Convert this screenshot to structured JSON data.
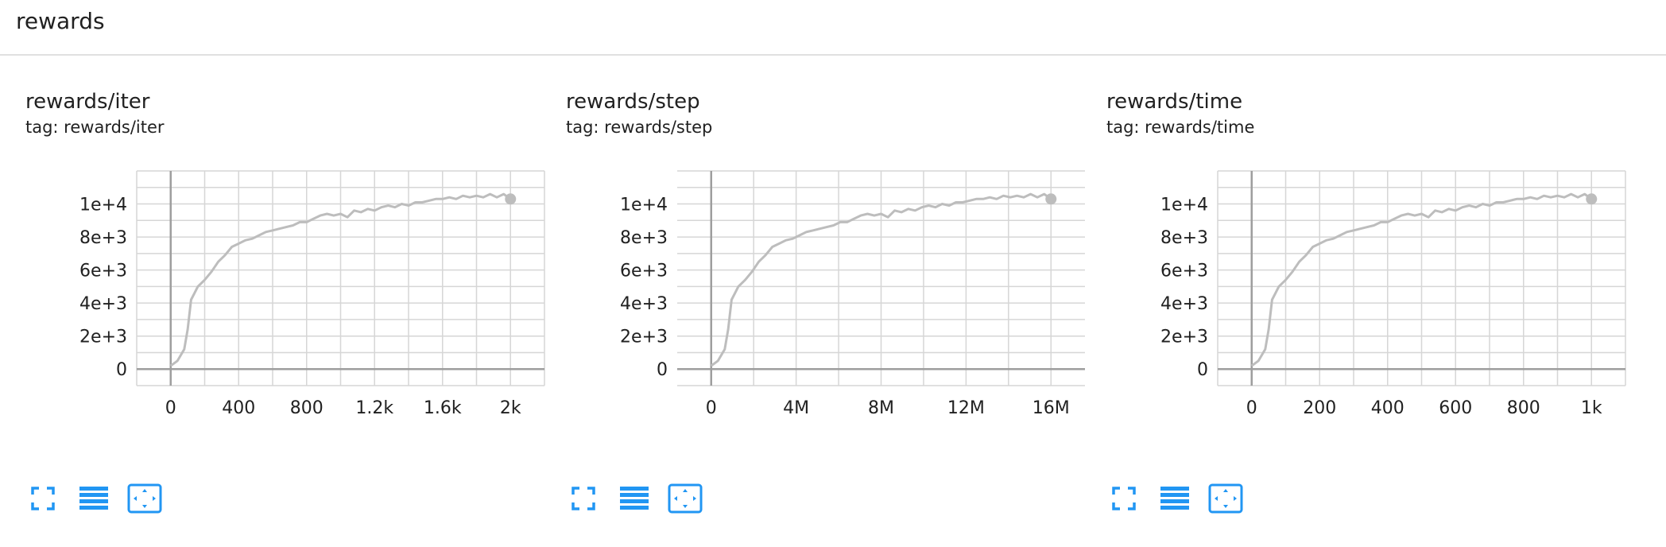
{
  "header": {
    "title": "rewards"
  },
  "colors": {
    "accent": "#2196f3",
    "series": "#bdbdbd",
    "grid": "#d6d6d6",
    "axis": "#9e9e9e",
    "text": "#212121"
  },
  "toolbar_icons": [
    "fullscreen-icon",
    "data-table-icon",
    "fit-domain-icon"
  ],
  "chart_data": [
    {
      "type": "line",
      "title": "rewards/iter",
      "tag": "tag: rewards/iter",
      "xlim": [
        -200,
        2200
      ],
      "ylim": [
        -1000,
        12000
      ],
      "xticks": [
        0,
        400,
        800,
        1200,
        1600,
        2000
      ],
      "xtick_labels": [
        "0",
        "400",
        "800",
        "1.2k",
        "1.6k",
        "2k"
      ],
      "yticks": [
        0,
        2000,
        4000,
        6000,
        8000,
        10000
      ],
      "ytick_labels": [
        "0",
        "2e+3",
        "4e+3",
        "6e+3",
        "8e+3",
        "1e+4"
      ],
      "grid": true,
      "series": [
        {
          "x": [
            0,
            40,
            80,
            100,
            120,
            140,
            160,
            200,
            240,
            280,
            320,
            360,
            400,
            440,
            480,
            520,
            560,
            600,
            640,
            680,
            720,
            760,
            800,
            840,
            880,
            920,
            960,
            1000,
            1040,
            1080,
            1120,
            1160,
            1200,
            1240,
            1280,
            1320,
            1360,
            1400,
            1440,
            1480,
            1520,
            1560,
            1600,
            1640,
            1680,
            1720,
            1760,
            1800,
            1840,
            1880,
            1920,
            1960,
            2000
          ],
          "y": [
            200,
            500,
            1200,
            2400,
            4200,
            4600,
            5000,
            5400,
            5900,
            6500,
            6900,
            7400,
            7600,
            7800,
            7900,
            8100,
            8300,
            8400,
            8500,
            8600,
            8700,
            8900,
            8900,
            9100,
            9300,
            9400,
            9300,
            9400,
            9200,
            9600,
            9500,
            9700,
            9600,
            9800,
            9900,
            9800,
            10000,
            9900,
            10100,
            10100,
            10200,
            10300,
            10300,
            10400,
            10300,
            10500,
            10400,
            10500,
            10400,
            10600,
            10400,
            10600,
            10300
          ]
        }
      ]
    },
    {
      "type": "line",
      "title": "rewards/step",
      "tag": "tag: rewards/step",
      "xlim": [
        -1600000,
        17600000
      ],
      "ylim": [
        -1000,
        12000
      ],
      "xticks": [
        0,
        4000000,
        8000000,
        12000000,
        16000000
      ],
      "xtick_labels": [
        "0",
        "4M",
        "8M",
        "12M",
        "16M"
      ],
      "yticks": [
        0,
        2000,
        4000,
        6000,
        8000,
        10000
      ],
      "ytick_labels": [
        "0",
        "2e+3",
        "4e+3",
        "6e+3",
        "8e+3",
        "1e+4"
      ],
      "grid": true,
      "series": [
        {
          "x": [
            0,
            320000,
            640000,
            800000,
            960000,
            1120000,
            1280000,
            1600000,
            1920000,
            2240000,
            2560000,
            2880000,
            3200000,
            3520000,
            3840000,
            4160000,
            4480000,
            4800000,
            5120000,
            5440000,
            5760000,
            6080000,
            6400000,
            6720000,
            7040000,
            7360000,
            7680000,
            8000000,
            8320000,
            8640000,
            8960000,
            9280000,
            9600000,
            9920000,
            10240000,
            10560000,
            10880000,
            11200000,
            11520000,
            11840000,
            12160000,
            12480000,
            12800000,
            13120000,
            13440000,
            13760000,
            14080000,
            14400000,
            14720000,
            15040000,
            15360000,
            15680000,
            16000000
          ],
          "y": [
            200,
            500,
            1200,
            2400,
            4200,
            4600,
            5000,
            5400,
            5900,
            6500,
            6900,
            7400,
            7600,
            7800,
            7900,
            8100,
            8300,
            8400,
            8500,
            8600,
            8700,
            8900,
            8900,
            9100,
            9300,
            9400,
            9300,
            9400,
            9200,
            9600,
            9500,
            9700,
            9600,
            9800,
            9900,
            9800,
            10000,
            9900,
            10100,
            10100,
            10200,
            10300,
            10300,
            10400,
            10300,
            10500,
            10400,
            10500,
            10400,
            10600,
            10400,
            10600,
            10300
          ]
        }
      ]
    },
    {
      "type": "line",
      "title": "rewards/time",
      "tag": "tag: rewards/time",
      "xlim": [
        -100,
        1100
      ],
      "ylim": [
        -1000,
        12000
      ],
      "xticks": [
        0,
        200,
        400,
        600,
        800,
        1000
      ],
      "xtick_labels": [
        "0",
        "200",
        "400",
        "600",
        "800",
        "1k"
      ],
      "yticks": [
        0,
        2000,
        4000,
        6000,
        8000,
        10000
      ],
      "ytick_labels": [
        "0",
        "2e+3",
        "4e+3",
        "6e+3",
        "8e+3",
        "1e+4"
      ],
      "grid": true,
      "series": [
        {
          "x": [
            0,
            20,
            40,
            50,
            60,
            70,
            80,
            100,
            120,
            140,
            160,
            180,
            200,
            220,
            240,
            260,
            280,
            300,
            320,
            340,
            360,
            380,
            400,
            420,
            440,
            460,
            480,
            500,
            520,
            540,
            560,
            580,
            600,
            620,
            640,
            660,
            680,
            700,
            720,
            740,
            760,
            780,
            800,
            820,
            840,
            860,
            880,
            900,
            920,
            940,
            960,
            980,
            1000
          ],
          "y": [
            200,
            500,
            1200,
            2400,
            4200,
            4600,
            5000,
            5400,
            5900,
            6500,
            6900,
            7400,
            7600,
            7800,
            7900,
            8100,
            8300,
            8400,
            8500,
            8600,
            8700,
            8900,
            8900,
            9100,
            9300,
            9400,
            9300,
            9400,
            9200,
            9600,
            9500,
            9700,
            9600,
            9800,
            9900,
            9800,
            10000,
            9900,
            10100,
            10100,
            10200,
            10300,
            10300,
            10400,
            10300,
            10500,
            10400,
            10500,
            10400,
            10600,
            10400,
            10600,
            10300
          ]
        }
      ]
    }
  ]
}
